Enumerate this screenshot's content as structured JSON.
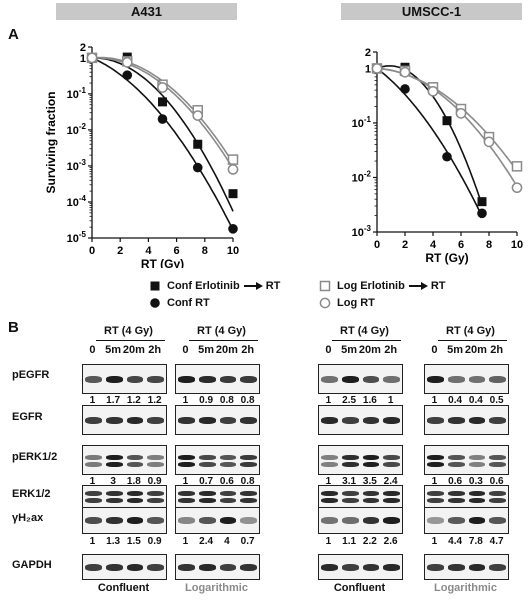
{
  "banners": [
    "A431",
    "UMSCC-1"
  ],
  "panel_a": "A",
  "panel_b": "B",
  "chart_data": [
    {
      "type": "scatter",
      "title": "A431",
      "xlabel": "RT (Gy)",
      "ylabel": "Surviving fraction",
      "x_ticks": [
        "0",
        "2",
        "4",
        "6",
        "8",
        "10"
      ],
      "y_ticks": [
        "2",
        "1",
        "10⁻¹",
        "10⁻²",
        "10⁻³",
        "10⁻⁴",
        "10⁻⁵"
      ],
      "y_scale": "log",
      "xlim": [
        0,
        10
      ],
      "ylim": [
        1e-05,
        2
      ],
      "series": [
        {
          "name": "Conf Erlotinib → RT",
          "marker": "filled-square",
          "x": [
            0,
            2.5,
            5,
            7.5,
            10
          ],
          "y": [
            1,
            1.05,
            0.06,
            0.004,
            0.00017
          ],
          "fit_end": 6e-05
        },
        {
          "name": "Conf RT",
          "marker": "filled-circle",
          "x": [
            0,
            2.5,
            5,
            7.5,
            10
          ],
          "y": [
            1,
            0.33,
            0.02,
            0.0009,
            1.8e-05
          ],
          "fit_end": 1.8e-05
        },
        {
          "name": "Log Erlotinib → RT",
          "marker": "open-square",
          "x": [
            0,
            2.5,
            5,
            7.5,
            10
          ],
          "y": [
            1,
            0.8,
            0.18,
            0.035,
            0.0015
          ],
          "fit_end": 0.0011
        },
        {
          "name": "Log RT",
          "marker": "open-circle",
          "x": [
            0,
            2.5,
            5,
            7.5,
            10
          ],
          "y": [
            1,
            0.75,
            0.15,
            0.025,
            0.0008
          ],
          "fit_end": 0.0008
        }
      ]
    },
    {
      "type": "scatter",
      "title": "UMSCC-1",
      "xlabel": "RT (Gy)",
      "ylabel": "",
      "x_ticks": [
        "0",
        "2",
        "4",
        "6",
        "8",
        "10"
      ],
      "y_ticks": [
        "2",
        "1",
        "10⁻¹",
        "10⁻²",
        "10⁻³"
      ],
      "y_scale": "log",
      "xlim": [
        0,
        10
      ],
      "ylim": [
        0.001,
        2
      ],
      "series": [
        {
          "name": "Conf Erlotinib → RT",
          "marker": "filled-square",
          "x": [
            0,
            2,
            5,
            7.5
          ],
          "y": [
            1,
            1.05,
            0.11,
            0.0036
          ],
          "fit_end": 0.0032
        },
        {
          "name": "Conf RT",
          "marker": "filled-circle",
          "x": [
            0,
            2,
            5,
            7.5
          ],
          "y": [
            1,
            0.42,
            0.024,
            0.0022
          ],
          "fit_end": 0.0021
        },
        {
          "name": "Log Erlotinib → RT",
          "marker": "open-square",
          "x": [
            0,
            2,
            4,
            6,
            8,
            10
          ],
          "y": [
            1,
            0.9,
            0.45,
            0.18,
            0.055,
            0.016
          ],
          "fit_end": 0.014
        },
        {
          "name": "Log RT",
          "marker": "open-circle",
          "x": [
            0,
            2,
            4,
            6,
            8,
            10
          ],
          "y": [
            1,
            0.85,
            0.38,
            0.15,
            0.045,
            0.0065
          ],
          "fit_end": 0.0065
        }
      ]
    }
  ],
  "legend": [
    {
      "marker": "filled-square",
      "text": "Conf Erlotinib",
      "arrow": "RT"
    },
    {
      "marker": "filled-circle",
      "text": "Conf RT",
      "arrow": ""
    },
    {
      "marker": "open-square",
      "text": "Log Erlotinib",
      "arrow": "RT"
    },
    {
      "marker": "open-circle",
      "text": "Log RT",
      "arrow": ""
    }
  ],
  "western": {
    "treatment_header": "RT (4 Gy)",
    "time_points": [
      "0",
      "5m",
      "20m",
      "2h"
    ],
    "rows": [
      "pEGFR",
      "EGFR",
      "pERK1/2",
      "ERK1/2",
      "γH₂ax",
      "GAPDH"
    ],
    "conditions": [
      "Confluent",
      "Logarithmic",
      "Confluent",
      "Logarithmic"
    ],
    "quant": [
      {
        "pEGFR": [
          "1",
          "1.7",
          "1.2",
          "1.2"
        ],
        "pERK1/2": [
          "1",
          "3",
          "1.8",
          "0.9"
        ],
        "γH₂ax": [
          "1",
          "1.3",
          "1.5",
          "0.9"
        ]
      },
      {
        "pEGFR": [
          "1",
          "0.9",
          "0.8",
          "0.8"
        ],
        "pERK1/2": [
          "1",
          "0.7",
          "0.6",
          "0.8"
        ],
        "γH₂ax": [
          "1",
          "2.4",
          "4",
          "0.7"
        ]
      },
      {
        "pEGFR": [
          "1",
          "2.5",
          "1.6",
          "1"
        ],
        "pERK1/2": [
          "1",
          "3.1",
          "3.5",
          "2.4"
        ],
        "γH₂ax": [
          "1",
          "1.1",
          "2.2",
          "2.6"
        ]
      },
      {
        "pEGFR": [
          "1",
          "0.4",
          "0.4",
          "0.5"
        ],
        "pERK1/2": [
          "1",
          "0.6",
          "0.3",
          "0.6"
        ],
        "γH₂ax": [
          "1",
          "4.4",
          "7.8",
          "4.7"
        ]
      }
    ]
  },
  "colors": {
    "banner": "#c8c8c8",
    "log_text": "#8a8a8a",
    "ink": "#111111",
    "open_marker": "#8a8a8a"
  }
}
